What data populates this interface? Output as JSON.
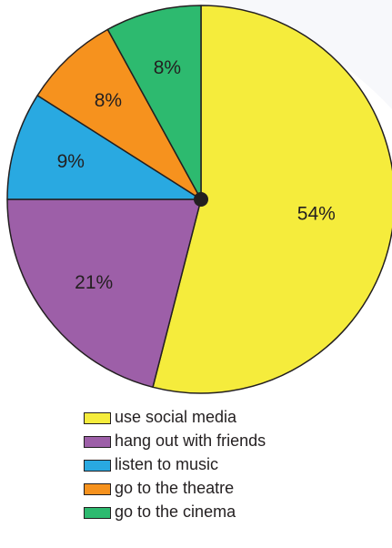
{
  "chart_data": {
    "type": "pie",
    "title": "",
    "slices": [
      {
        "label": "use social media",
        "value": 54,
        "display": "54%",
        "color": "#f5ec3c"
      },
      {
        "label": "hang out with friends",
        "value": 21,
        "display": "21%",
        "color": "#9d5fa8"
      },
      {
        "label": "listen to music",
        "value": 9,
        "display": "9%",
        "color": "#29a9e1"
      },
      {
        "label": "go to the theatre",
        "value": 8,
        "display": "8%",
        "color": "#f6921e"
      },
      {
        "label": "go to the cinema",
        "value": 8,
        "display": "8%",
        "color": "#2dba6f"
      }
    ],
    "start_angle": "top (12 o'clock), clockwise",
    "legend_position": "bottom",
    "outline_color": "#231f20"
  }
}
